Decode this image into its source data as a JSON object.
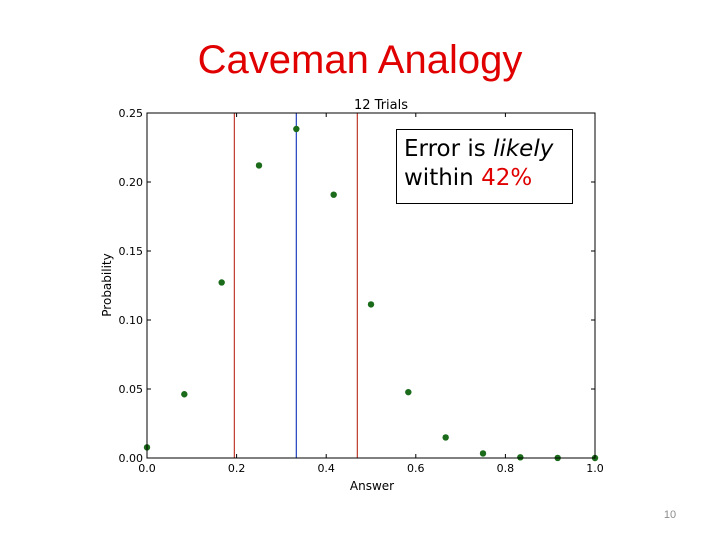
{
  "slide": {
    "title": "Caveman Analogy",
    "page_number": "10"
  },
  "annotation": {
    "line1_prefix": "Error is ",
    "line1_em": "likely",
    "line2_prefix": "within ",
    "line2_value": "42%"
  },
  "chart_data": {
    "type": "scatter",
    "title": "12 Trials",
    "xlabel": "Answer",
    "ylabel": "Probability",
    "xlim": [
      0,
      1
    ],
    "ylim": [
      0,
      0.25
    ],
    "x_ticks": [
      "0.0",
      "0.2",
      "0.4",
      "0.6",
      "0.8",
      "1.0"
    ],
    "y_ticks": [
      "0.00",
      "0.05",
      "0.10",
      "0.15",
      "0.20",
      "0.25"
    ],
    "grid": false,
    "series": [
      {
        "x": [
          0,
          0.0833,
          0.1667,
          0.25,
          0.3333,
          0.4167,
          0.5,
          0.5833,
          0.6667,
          0.75,
          0.8333,
          0.9167,
          1.0
        ],
        "y": [
          0.0077,
          0.0462,
          0.1272,
          0.212,
          0.2384,
          0.1908,
          0.1113,
          0.0477,
          0.0149,
          0.0033,
          0.0005,
          5e-05,
          0.0
        ],
        "color": "#1a6b1a"
      }
    ],
    "vlines": [
      {
        "x": 0.195,
        "color": "#c0392b"
      },
      {
        "x": 0.3333,
        "color": "#1f3fbf"
      },
      {
        "x": 0.4695,
        "color": "#c0392b"
      }
    ]
  }
}
